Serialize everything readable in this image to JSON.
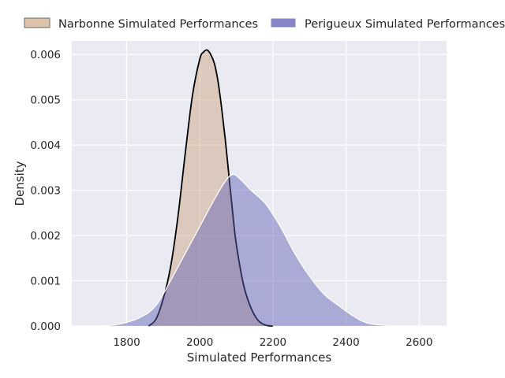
{
  "chart_data": {
    "type": "area",
    "title": "",
    "xlabel": "Simulated Performances",
    "ylabel": "Density",
    "xlim": [
      1650,
      2675
    ],
    "ylim": [
      0,
      0.0063
    ],
    "xticks": [
      1800,
      2000,
      2200,
      2400,
      2600
    ],
    "xtick_labels": [
      "1800",
      "2000",
      "2200",
      "2400",
      "2600"
    ],
    "yticks": [
      0.0,
      0.001,
      0.002,
      0.003,
      0.004,
      0.005,
      0.006
    ],
    "ytick_labels": [
      "0.000",
      "0.001",
      "0.002",
      "0.003",
      "0.004",
      "0.005",
      "0.006"
    ],
    "grid": true,
    "legend_position": "top",
    "series": [
      {
        "name": "Narbonne Simulated Performances",
        "fill_color": "#c9a27e",
        "edge_color": "#000000",
        "x": [
          1860,
          1880,
          1900,
          1920,
          1940,
          1960,
          1980,
          2000,
          2010,
          2020,
          2030,
          2040,
          2050,
          2060,
          2070,
          2080,
          2090,
          2100,
          2120,
          2140,
          2160,
          2180,
          2200
        ],
        "y": [
          0.0,
          0.00015,
          0.0006,
          0.0013,
          0.0024,
          0.0038,
          0.0051,
          0.0059,
          0.00605,
          0.0061,
          0.006,
          0.0058,
          0.0054,
          0.0048,
          0.0041,
          0.0033,
          0.0025,
          0.0018,
          0.0009,
          0.0004,
          0.00012,
          2e-05,
          0.0
        ]
      },
      {
        "name": "Perigueux Simulated Performances",
        "fill_color": "#5d5db4",
        "edge_color": "#ffffff",
        "x": [
          1700,
          1760,
          1800,
          1840,
          1880,
          1920,
          1960,
          2000,
          2040,
          2070,
          2090,
          2110,
          2140,
          2180,
          2220,
          2260,
          2300,
          2340,
          2380,
          2420,
          2460,
          2520,
          2580,
          2630
        ],
        "y": [
          0.0,
          2e-05,
          8e-05,
          0.0002,
          0.00045,
          0.001,
          0.0016,
          0.0022,
          0.0028,
          0.0032,
          0.00335,
          0.00325,
          0.003,
          0.0027,
          0.0022,
          0.0016,
          0.0011,
          0.0007,
          0.00045,
          0.00022,
          6e-05,
          1e-05,
          0.0,
          0.0
        ]
      }
    ]
  }
}
